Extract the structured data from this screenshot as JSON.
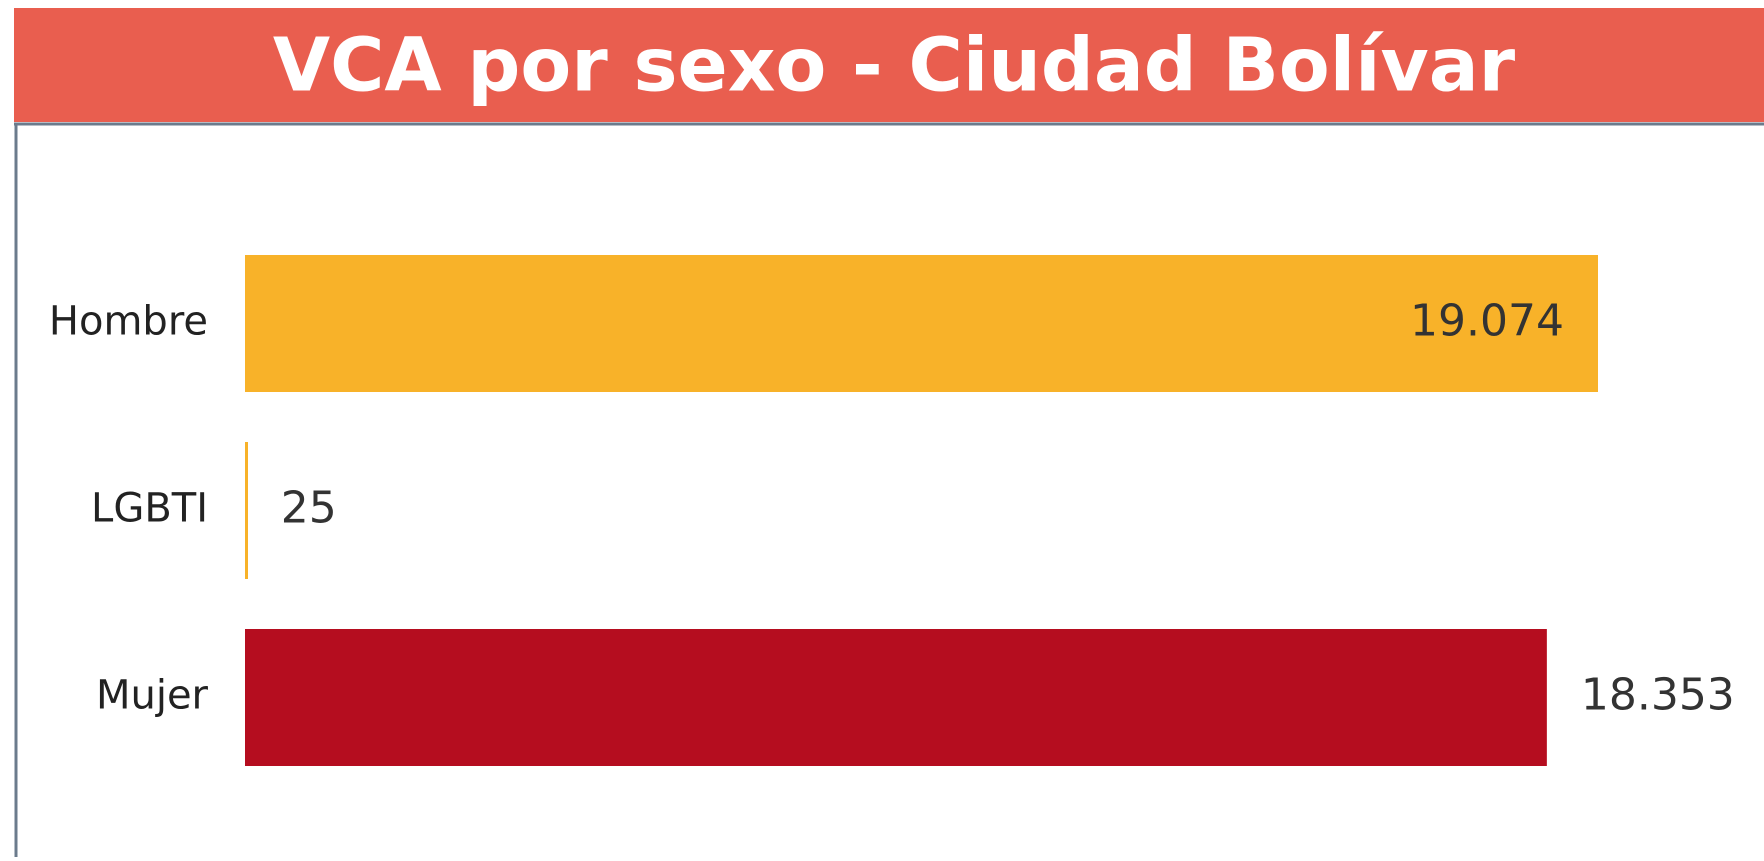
{
  "chart_data": {
    "type": "hbar",
    "title": "VCA por sexo - Ciudad Bolívar",
    "categories": [
      "Hombre",
      "LGBTI",
      "Mujer"
    ],
    "values": [
      19074,
      25,
      18353
    ],
    "value_labels": [
      "19.074",
      "25",
      "18.353"
    ],
    "colors": [
      "#f8b229",
      "#f8b229",
      "#b50d1f"
    ],
    "header_color": "#e95e4f"
  }
}
